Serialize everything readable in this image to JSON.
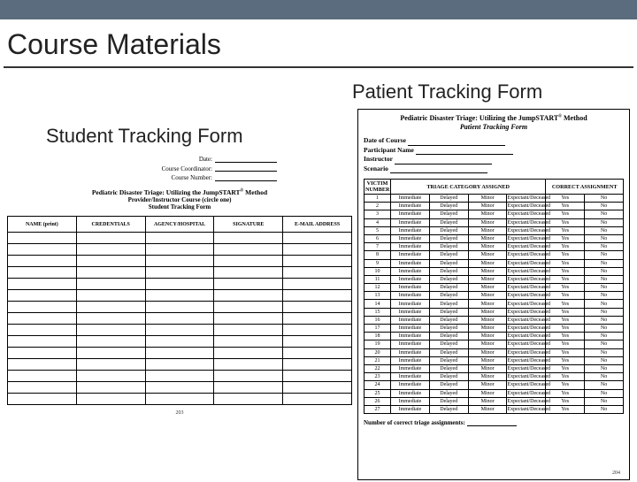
{
  "colors": {
    "topbar": "#5a6c7d",
    "text": "#222222",
    "rule": "#333333",
    "form_border": "#000000",
    "background": "#ffffff"
  },
  "slide_title": "Course Materials",
  "label_patient": "Patient Tracking Form",
  "label_student": "Student Tracking Form",
  "student_form": {
    "meta_date_label": "Date:",
    "meta_coord_label": "Course Coordinator:",
    "meta_number_label": "Course Number:",
    "title_line1": "Pediatric Disaster Triage: Utilizing the JumpSTART",
    "title_sup": "®",
    "title_line2": " Method",
    "subtitle": "Provider/Instructor Course (circle one)",
    "subtitle2": "Student Tracking Form",
    "columns": [
      "NAME (print)",
      "CREDENTIALS",
      "AGENCY/HOSPITAL",
      "SIGNATURE",
      "E-MAIL ADDRESS"
    ],
    "blank_rows": 15,
    "page_label": "203"
  },
  "patient_form": {
    "title_line1": "Pediatric Disaster Triage: Utilizing the JumpSTART",
    "title_sup": "®",
    "title_line2": " Method",
    "subtitle": "Patient Tracking Form",
    "meta_labels": [
      "Date of Course",
      "Participant Name",
      "Instructor",
      "Scenario"
    ],
    "header_victim": "VICTIM NUMBER",
    "header_triage": "TRIAGE CATEGORY ASSIGNED",
    "header_correct": "CORRECT ASSIGNMENT",
    "triage_cats": [
      "Immediate",
      "Delayed",
      "Minor",
      "Expectant/Deceased"
    ],
    "yes": "Yes",
    "no": "No",
    "row_count": 27,
    "footer_label": "Number of correct triage assignments:",
    "page_label": "204"
  }
}
